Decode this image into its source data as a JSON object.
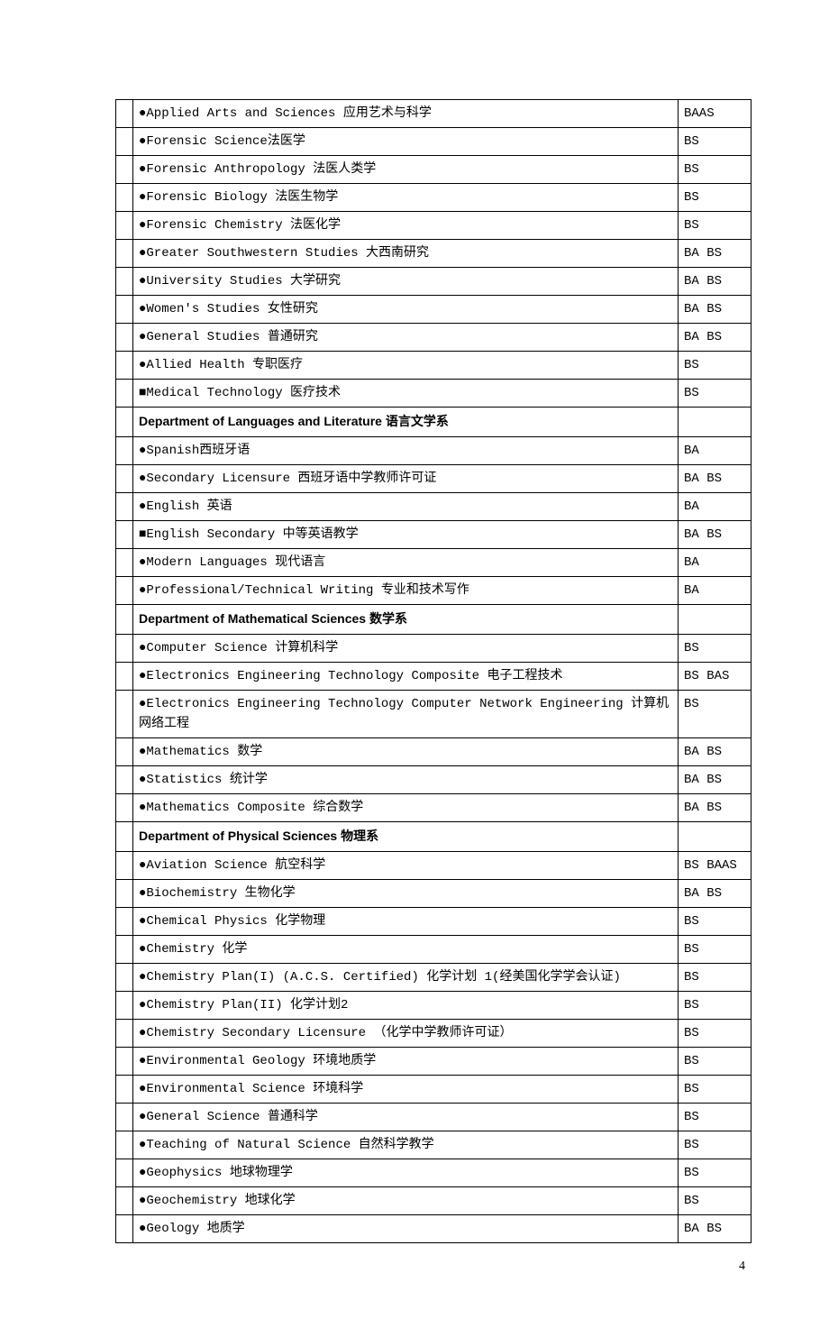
{
  "page_number": "4",
  "rows": [
    {
      "type": "course",
      "bullet": "●",
      "text": "Applied Arts and Sciences  应用艺术与科学",
      "degree": "BAAS"
    },
    {
      "type": "course",
      "bullet": "●",
      "text": "Forensic Science法医学",
      "degree": "BS"
    },
    {
      "type": "course",
      "bullet": "●",
      "text": "Forensic Anthropology  法医人类学",
      "degree": "BS"
    },
    {
      "type": "course",
      "bullet": "●",
      "text": "Forensic Biology  法医生物学",
      "degree": "BS"
    },
    {
      "type": "course",
      "bullet": "●",
      "text": "Forensic Chemistry  法医化学",
      "degree": "BS"
    },
    {
      "type": "course",
      "bullet": "●",
      "text": "Greater Southwestern Studies 大西南研究",
      "degree": "BA BS"
    },
    {
      "type": "course",
      "bullet": "●",
      "text": "University Studies 大学研究",
      "degree": "BA BS"
    },
    {
      "type": "course",
      "bullet": "●",
      "text": "Women's Studies 女性研究",
      "degree": "BA BS"
    },
    {
      "type": "course",
      "bullet": "●",
      "text": "General Studies  普通研究",
      "degree": "BA BS"
    },
    {
      "type": "course",
      "bullet": "●",
      "text": "Allied Health  专职医疗",
      "degree": "BS"
    },
    {
      "type": "course",
      "bullet": "■",
      "text": "Medical Technology 医疗技术",
      "degree": "BS"
    },
    {
      "type": "dept",
      "text": "Department of Languages and Literature  语言文学系",
      "degree": ""
    },
    {
      "type": "course",
      "bullet": "●",
      "text": "Spanish西班牙语",
      "degree": "BA"
    },
    {
      "type": "course",
      "bullet": "●",
      "text": "Secondary Licensure  西班牙语中学教师许可证",
      "degree": "BA BS"
    },
    {
      "type": "course",
      "bullet": "●",
      "text": "English 英语",
      "degree": "BA"
    },
    {
      "type": "course",
      "bullet": "■",
      "text": "English Secondary 中等英语教学",
      "degree": "BA BS"
    },
    {
      "type": "course",
      "bullet": "●",
      "text": "Modern Languages 现代语言",
      "degree": "BA"
    },
    {
      "type": "course",
      "bullet": "●",
      "text": "Professional/Technical Writing 专业和技术写作",
      "degree": "BA"
    },
    {
      "type": "dept",
      "text": "Department of Mathematical Sciences  数学系",
      "degree": ""
    },
    {
      "type": "course",
      "bullet": "●",
      "text": "Computer Science  计算机科学",
      "degree": "BS"
    },
    {
      "type": "course",
      "bullet": "●",
      "text": "Electronics Engineering Technology Composite  电子工程技术",
      "degree": "BS BAS"
    },
    {
      "type": "course",
      "bullet": "●",
      "text": "Electronics Engineering Technology Computer Network Engineering  计算机网络工程",
      "degree": "BS"
    },
    {
      "type": "course",
      "bullet": "●",
      "text": "Mathematics  数学",
      "degree": "BA BS"
    },
    {
      "type": "course",
      "bullet": "●",
      "text": "Statistics  统计学",
      "degree": "BA BS"
    },
    {
      "type": "course",
      "bullet": "●",
      "text": "Mathematics Composite  综合数学",
      "degree": "BA BS"
    },
    {
      "type": "dept",
      "text": "Department of Physical Sciences  物理系",
      "degree": ""
    },
    {
      "type": "course",
      "bullet": "●",
      "text": "Aviation Science  航空科学",
      "degree": "BS BAAS"
    },
    {
      "type": "course",
      "bullet": "●",
      "text": "Biochemistry  生物化学",
      "degree": "BA BS"
    },
    {
      "type": "course",
      "bullet": "●",
      "text": "Chemical Physics 化学物理",
      "degree": "BS"
    },
    {
      "type": "course",
      "bullet": "●",
      "text": "Chemistry  化学",
      "degree": "BS"
    },
    {
      "type": "course",
      "bullet": "●",
      "text": "Chemistry Plan(I) (A.C.S. Certified)  化学计划 1(经美国化学学会认证)",
      "degree": "BS"
    },
    {
      "type": "course",
      "bullet": "●",
      "text": "Chemistry Plan(II)  化学计划2",
      "degree": "BS"
    },
    {
      "type": "course",
      "bullet": "●",
      "text": "Chemistry Secondary Licensure  （化学中学教师许可证）",
      "degree": "BS"
    },
    {
      "type": "course",
      "bullet": "●",
      "text": "Environmental Geology 环境地质学",
      "degree": "BS"
    },
    {
      "type": "course",
      "bullet": "●",
      "text": "Environmental Science  环境科学",
      "degree": "BS"
    },
    {
      "type": "course",
      "bullet": "●",
      "text": "General Science 普通科学",
      "degree": "BS"
    },
    {
      "type": "course",
      "bullet": "●",
      "text": "Teaching of Natural Science 自然科学教学",
      "degree": "BS"
    },
    {
      "type": "course",
      "bullet": "●",
      "text": "Geophysics 地球物理学",
      "degree": "BS"
    },
    {
      "type": "course",
      "bullet": "●",
      "text": "Geochemistry 地球化学",
      "degree": "BS"
    },
    {
      "type": "course",
      "bullet": "●",
      "text": "Geology  地质学",
      "degree": "BA BS"
    }
  ]
}
